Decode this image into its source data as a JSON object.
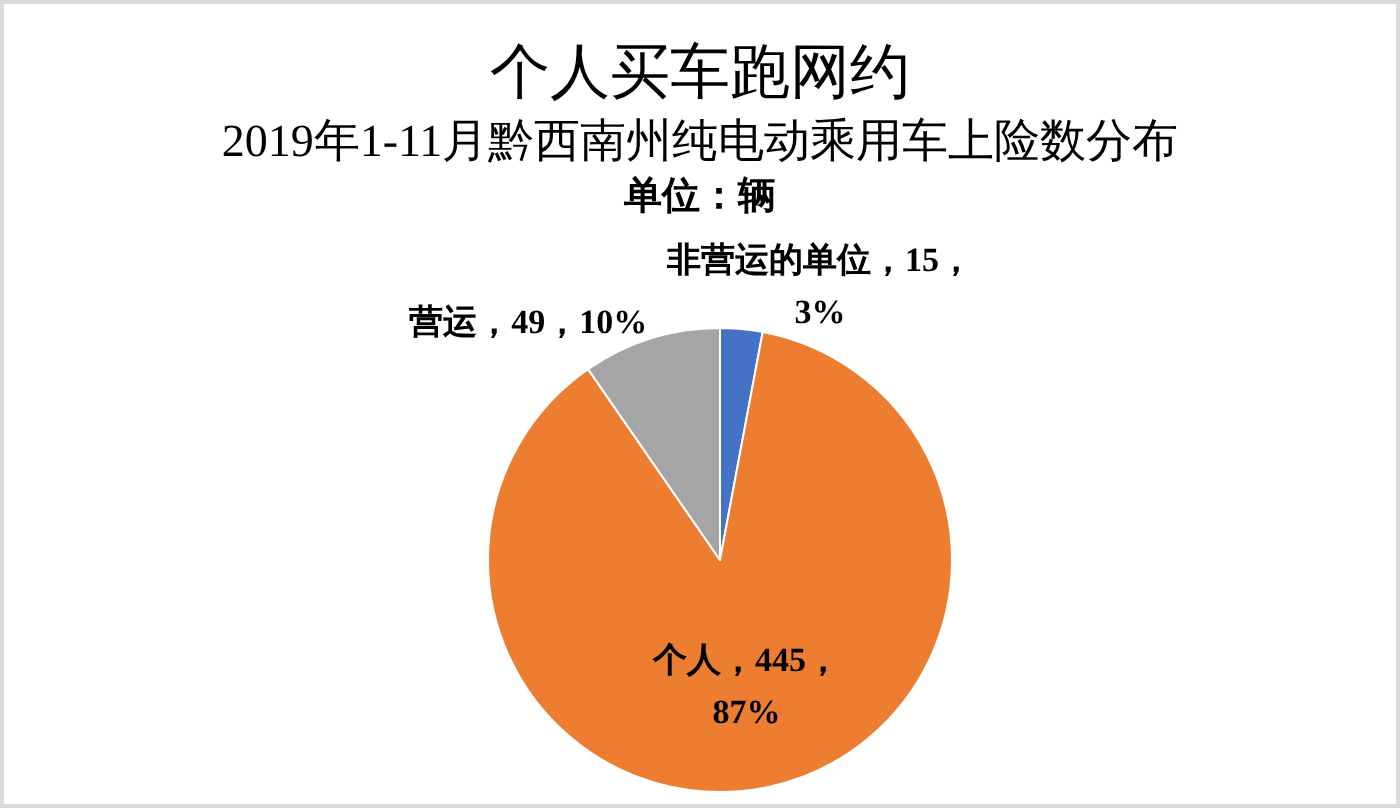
{
  "chart_data": {
    "type": "pie",
    "title": "个人买车跑网约",
    "subtitle": "2019年1-11月黔西南州纯电动乘用车上险数分布",
    "annotations": [
      "单位：辆"
    ],
    "categories": [
      "非营运的单位",
      "个人",
      "营运"
    ],
    "values": [
      15,
      445,
      49
    ],
    "colors": [
      "#4472c4",
      "#ed7d31",
      "#a5a5a5"
    ],
    "value_labels": [
      "15，3%",
      "445，87%",
      "49，10%"
    ]
  }
}
